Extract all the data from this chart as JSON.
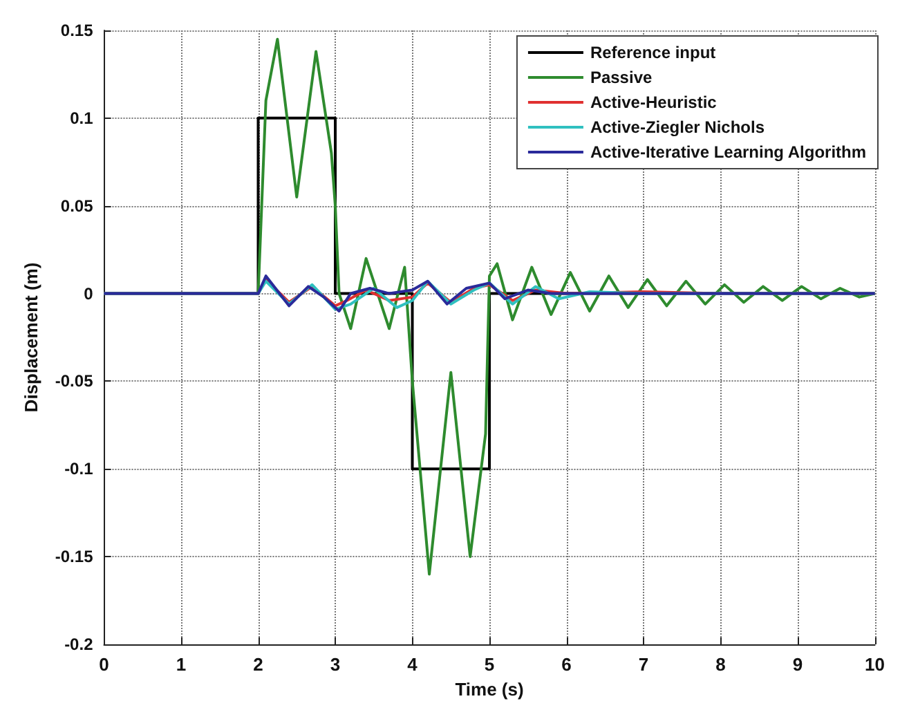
{
  "chart_data": {
    "type": "line",
    "xlabel": "Time (s)",
    "ylabel": "Displacement (m)",
    "xlim": [
      0,
      10
    ],
    "xticks": [
      0,
      1,
      2,
      3,
      4,
      5,
      6,
      7,
      8,
      9,
      10
    ],
    "ylim": [
      -0.2,
      0.15
    ],
    "yticks": [
      -0.2,
      -0.15,
      -0.1,
      -0.05,
      0,
      0.05,
      0.1,
      0.15
    ],
    "grid": true,
    "legend": "top right",
    "marker": "none",
    "line_style": "solid",
    "series": [
      {
        "name": "Reference input",
        "color": "#000000",
        "x": [
          0,
          2,
          2,
          3,
          3,
          4,
          4,
          5,
          5,
          10
        ],
        "values": [
          0,
          0,
          0.1,
          0.1,
          0,
          0,
          -0.1,
          -0.1,
          0,
          0
        ]
      },
      {
        "name": "Passive",
        "color": "#2e8b2e",
        "x": [
          0,
          2,
          2.1,
          2.25,
          2.5,
          2.75,
          2.95,
          3,
          3.05,
          3.2,
          3.4,
          3.7,
          3.9,
          4,
          4.22,
          4.5,
          4.75,
          4.95,
          5,
          5.1,
          5.3,
          5.55,
          5.8,
          6.05,
          6.3,
          6.55,
          6.8,
          7.05,
          7.3,
          7.55,
          7.8,
          8.05,
          8.3,
          8.55,
          8.8,
          9.05,
          9.3,
          9.55,
          9.8,
          10
        ],
        "values": [
          0,
          0,
          0.11,
          0.145,
          0.055,
          0.138,
          0.08,
          0.05,
          0,
          -0.02,
          0.02,
          -0.02,
          0.015,
          -0.05,
          -0.16,
          -0.045,
          -0.15,
          -0.08,
          0.01,
          0.017,
          -0.015,
          0.015,
          -0.012,
          0.012,
          -0.01,
          0.01,
          -0.008,
          0.008,
          -0.007,
          0.007,
          -0.006,
          0.005,
          -0.005,
          0.004,
          -0.004,
          0.004,
          -0.003,
          0.003,
          -0.002,
          0
        ]
      },
      {
        "name": "Active-Heuristic",
        "color": "#e03030",
        "x": [
          0,
          2,
          2.1,
          2.4,
          2.7,
          3,
          3.15,
          3.4,
          3.7,
          4,
          4.2,
          4.5,
          4.8,
          5,
          5.3,
          5.6,
          6,
          7,
          8,
          10
        ],
        "values": [
          0,
          0,
          0.008,
          -0.005,
          0.004,
          -0.007,
          -0.004,
          0.002,
          -0.004,
          -0.002,
          0.006,
          -0.005,
          0.003,
          0.005,
          -0.004,
          0.002,
          0,
          0.001,
          0,
          0
        ]
      },
      {
        "name": "Active-Ziegler Nichols",
        "color": "#30c0c0",
        "x": [
          0,
          2,
          2.1,
          2.4,
          2.7,
          3,
          3.2,
          3.5,
          3.8,
          4,
          4.2,
          4.5,
          4.8,
          5,
          5.3,
          5.6,
          5.9,
          6.3,
          7,
          8,
          10
        ],
        "values": [
          0,
          0,
          0.007,
          -0.006,
          0.005,
          -0.009,
          -0.006,
          0.003,
          -0.008,
          -0.004,
          0.007,
          -0.006,
          0.002,
          0.006,
          -0.006,
          0.004,
          -0.003,
          0.001,
          0,
          0,
          0
        ]
      },
      {
        "name": "Active-Iterative Learning Algorithm",
        "color": "#2a2a9a",
        "x": [
          0,
          2,
          2.1,
          2.4,
          2.65,
          2.85,
          3.05,
          3.2,
          3.45,
          3.7,
          4,
          4.2,
          4.45,
          4.7,
          5,
          5.2,
          5.5,
          5.8,
          6.2,
          7,
          8,
          10
        ],
        "values": [
          0,
          0,
          0.01,
          -0.007,
          0.004,
          -0.002,
          -0.01,
          0,
          0.003,
          0,
          0.002,
          0.007,
          -0.006,
          0.003,
          0.006,
          -0.003,
          0.002,
          0,
          0,
          0,
          0,
          0
        ]
      }
    ]
  }
}
